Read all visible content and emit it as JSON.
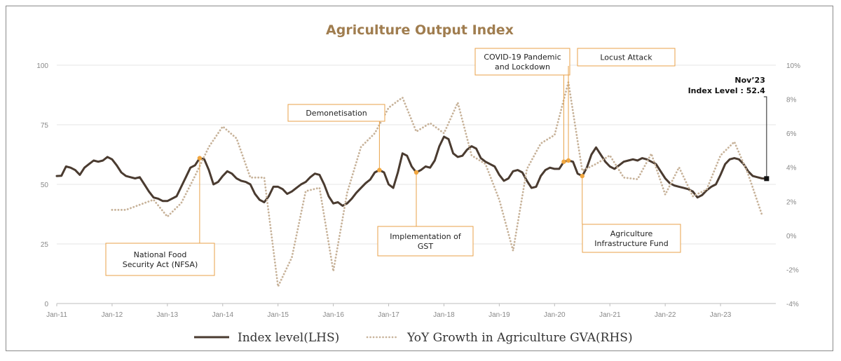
{
  "chart_data": {
    "type": "line",
    "title": "Agriculture Output Index",
    "x_tick_labels": [
      "Jan-11",
      "Jan-12",
      "Jan-13",
      "Jan-14",
      "Jan-15",
      "Jan-16",
      "Jan-17",
      "Jan-18",
      "Jan-19",
      "Jan-20",
      "Jan-21",
      "Jan-22",
      "Jan-23"
    ],
    "y_left_ticks": [
      "0",
      "25",
      "50",
      "75",
      "100"
    ],
    "y_right_ticks": [
      "-4%",
      "-2%",
      "0%",
      "2%",
      "4%",
      "6%",
      "8%",
      "10%"
    ],
    "y_left_range": [
      0,
      100
    ],
    "y_right_range": [
      -4,
      10
    ],
    "grid": true,
    "legend_position": "bottom",
    "series": [
      {
        "name": "Index level(LHS)",
        "axis": "left",
        "color": "#4a3b30",
        "style": "solid",
        "points": [
          [
            "2011-01",
            53.5
          ],
          [
            "2011-02",
            53.6
          ],
          [
            "2011-03",
            57.5
          ],
          [
            "2011-04",
            57.0
          ],
          [
            "2011-05",
            56.0
          ],
          [
            "2011-06",
            54.0
          ],
          [
            "2011-07",
            57.0
          ],
          [
            "2011-08",
            58.5
          ],
          [
            "2011-09",
            60.0
          ],
          [
            "2011-10",
            59.5
          ],
          [
            "2011-11",
            60.0
          ],
          [
            "2011-12",
            61.5
          ],
          [
            "2012-01",
            60.5
          ],
          [
            "2012-02",
            58.0
          ],
          [
            "2012-03",
            55.0
          ],
          [
            "2012-04",
            53.5
          ],
          [
            "2012-05",
            53.0
          ],
          [
            "2012-06",
            52.5
          ],
          [
            "2012-07",
            53.0
          ],
          [
            "2012-08",
            50.0
          ],
          [
            "2012-09",
            47.0
          ],
          [
            "2012-10",
            44.5
          ],
          [
            "2012-11",
            44.0
          ],
          [
            "2012-12",
            43.0
          ],
          [
            "2013-01",
            43.0
          ],
          [
            "2013-02",
            44.0
          ],
          [
            "2013-03",
            45.0
          ],
          [
            "2013-04",
            49.0
          ],
          [
            "2013-05",
            53.0
          ],
          [
            "2013-06",
            57.0
          ],
          [
            "2013-07",
            58.0
          ],
          [
            "2013-08",
            61.0
          ],
          [
            "2013-09",
            60.5
          ],
          [
            "2013-10",
            56.0
          ],
          [
            "2013-11",
            50.0
          ],
          [
            "2013-12",
            51.0
          ],
          [
            "2014-01",
            53.5
          ],
          [
            "2014-02",
            55.5
          ],
          [
            "2014-03",
            54.5
          ],
          [
            "2014-04",
            52.5
          ],
          [
            "2014-05",
            51.5
          ],
          [
            "2014-06",
            51.0
          ],
          [
            "2014-07",
            50.0
          ],
          [
            "2014-08",
            46.0
          ],
          [
            "2014-09",
            43.5
          ],
          [
            "2014-10",
            42.5
          ],
          [
            "2014-11",
            45.0
          ],
          [
            "2014-12",
            49.0
          ],
          [
            "2015-01",
            49.0
          ],
          [
            "2015-02",
            48.0
          ],
          [
            "2015-03",
            46.0
          ],
          [
            "2015-04",
            47.0
          ],
          [
            "2015-05",
            48.5
          ],
          [
            "2015-06",
            50.0
          ],
          [
            "2015-07",
            51.0
          ],
          [
            "2015-08",
            53.0
          ],
          [
            "2015-09",
            54.5
          ],
          [
            "2015-10",
            54.0
          ],
          [
            "2015-11",
            50.0
          ],
          [
            "2015-12",
            45.0
          ],
          [
            "2016-01",
            42.0
          ],
          [
            "2016-02",
            42.5
          ],
          [
            "2016-03",
            41.0
          ],
          [
            "2016-04",
            42.0
          ],
          [
            "2016-05",
            44.0
          ],
          [
            "2016-06",
            46.5
          ],
          [
            "2016-07",
            48.5
          ],
          [
            "2016-08",
            50.5
          ],
          [
            "2016-09",
            52.0
          ],
          [
            "2016-10",
            55.0
          ],
          [
            "2016-11",
            56.0
          ],
          [
            "2016-12",
            55.0
          ],
          [
            "2017-01",
            50.0
          ],
          [
            "2017-02",
            48.5
          ],
          [
            "2017-03",
            55.0
          ],
          [
            "2017-04",
            63.0
          ],
          [
            "2017-05",
            62.0
          ],
          [
            "2017-06",
            57.5
          ],
          [
            "2017-07",
            55.0
          ],
          [
            "2017-08",
            56.0
          ],
          [
            "2017-09",
            57.5
          ],
          [
            "2017-10",
            57.0
          ],
          [
            "2017-11",
            60.0
          ],
          [
            "2017-12",
            66.0
          ],
          [
            "2018-01",
            70.0
          ],
          [
            "2018-02",
            69.0
          ],
          [
            "2018-03",
            63.0
          ],
          [
            "2018-04",
            61.5
          ],
          [
            "2018-05",
            62.0
          ],
          [
            "2018-06",
            64.5
          ],
          [
            "2018-07",
            66.0
          ],
          [
            "2018-08",
            65.0
          ],
          [
            "2018-09",
            61.0
          ],
          [
            "2018-10",
            59.5
          ],
          [
            "2018-11",
            58.5
          ],
          [
            "2018-12",
            57.5
          ],
          [
            "2019-01",
            54.0
          ],
          [
            "2019-02",
            51.5
          ],
          [
            "2019-03",
            52.5
          ],
          [
            "2019-04",
            55.5
          ],
          [
            "2019-05",
            56.0
          ],
          [
            "2019-06",
            55.0
          ],
          [
            "2019-07",
            51.5
          ],
          [
            "2019-08",
            48.5
          ],
          [
            "2019-09",
            49.0
          ],
          [
            "2019-10",
            53.5
          ],
          [
            "2019-11",
            56.0
          ],
          [
            "2019-12",
            57.0
          ],
          [
            "2020-01",
            56.5
          ],
          [
            "2020-02",
            56.5
          ],
          [
            "2020-03",
            59.5
          ],
          [
            "2020-04",
            60.0
          ],
          [
            "2020-05",
            59.5
          ],
          [
            "2020-06",
            54.5
          ],
          [
            "2020-07",
            53.5
          ],
          [
            "2020-08",
            57.0
          ],
          [
            "2020-09",
            62.5
          ],
          [
            "2020-10",
            65.5
          ],
          [
            "2020-11",
            62.5
          ],
          [
            "2020-12",
            59.5
          ],
          [
            "2021-01",
            57.5
          ],
          [
            "2021-02",
            56.5
          ],
          [
            "2021-03",
            58.0
          ],
          [
            "2021-04",
            59.5
          ],
          [
            "2021-05",
            60.0
          ],
          [
            "2021-06",
            60.5
          ],
          [
            "2021-07",
            60.0
          ],
          [
            "2021-08",
            61.0
          ],
          [
            "2021-09",
            60.5
          ],
          [
            "2021-10",
            59.5
          ],
          [
            "2021-11",
            58.5
          ],
          [
            "2021-12",
            55.5
          ],
          [
            "2022-01",
            52.5
          ],
          [
            "2022-02",
            50.5
          ],
          [
            "2022-03",
            49.5
          ],
          [
            "2022-04",
            49.0
          ],
          [
            "2022-05",
            48.5
          ],
          [
            "2022-06",
            48.0
          ],
          [
            "2022-07",
            47.0
          ],
          [
            "2022-08",
            44.5
          ],
          [
            "2022-09",
            45.5
          ],
          [
            "2022-10",
            47.5
          ],
          [
            "2022-11",
            49.0
          ],
          [
            "2022-12",
            50.0
          ],
          [
            "2023-01",
            54.0
          ],
          [
            "2023-02",
            58.5
          ],
          [
            "2023-03",
            60.5
          ],
          [
            "2023-04",
            61.0
          ],
          [
            "2023-05",
            60.5
          ],
          [
            "2023-06",
            58.5
          ],
          [
            "2023-07",
            55.5
          ],
          [
            "2023-08",
            53.5
          ],
          [
            "2023-09",
            53.0
          ],
          [
            "2023-10",
            52.5
          ],
          [
            "2023-11",
            52.4
          ]
        ]
      },
      {
        "name": "YoY Growth in Agriculture GVA(RHS)",
        "axis": "right",
        "color": "#c7b299",
        "style": "dotted",
        "points": [
          [
            "2012-01",
            1.5
          ],
          [
            "2012-04",
            1.5
          ],
          [
            "2012-07",
            1.8
          ],
          [
            "2012-10",
            2.1
          ],
          [
            "2013-01",
            1.1
          ],
          [
            "2013-04",
            1.9
          ],
          [
            "2013-07",
            3.5
          ],
          [
            "2013-10",
            5.2
          ],
          [
            "2014-01",
            6.4
          ],
          [
            "2014-04",
            5.7
          ],
          [
            "2014-07",
            3.4
          ],
          [
            "2014-10",
            3.4
          ],
          [
            "2015-01",
            -3.0
          ],
          [
            "2015-04",
            -1.3
          ],
          [
            "2015-07",
            2.6
          ],
          [
            "2015-10",
            2.8
          ],
          [
            "2016-01",
            -2.1
          ],
          [
            "2016-04",
            2.5
          ],
          [
            "2016-07",
            5.2
          ],
          [
            "2016-10",
            6.0
          ],
          [
            "2017-01",
            7.5
          ],
          [
            "2017-04",
            8.1
          ],
          [
            "2017-07",
            6.1
          ],
          [
            "2017-10",
            6.6
          ],
          [
            "2018-01",
            6.0
          ],
          [
            "2018-04",
            7.8
          ],
          [
            "2018-07",
            4.7
          ],
          [
            "2018-10",
            4.2
          ],
          [
            "2019-01",
            2.1
          ],
          [
            "2019-04",
            -0.9
          ],
          [
            "2019-07",
            3.9
          ],
          [
            "2019-10",
            5.4
          ],
          [
            "2020-01",
            5.9
          ],
          [
            "2020-04",
            9.0
          ],
          [
            "2020-07",
            3.8
          ],
          [
            "2020-10",
            4.2
          ],
          [
            "2021-01",
            4.7
          ],
          [
            "2021-04",
            3.4
          ],
          [
            "2021-07",
            3.3
          ],
          [
            "2021-10",
            4.8
          ],
          [
            "2022-01",
            2.4
          ],
          [
            "2022-04",
            4.0
          ],
          [
            "2022-07",
            2.3
          ],
          [
            "2022-10",
            2.7
          ],
          [
            "2023-01",
            4.7
          ],
          [
            "2023-04",
            5.5
          ],
          [
            "2023-07",
            3.6
          ],
          [
            "2023-10",
            1.2
          ]
        ]
      }
    ],
    "annotations": [
      {
        "lines": [
          "National Food",
          "Security Act (NFSA)"
        ],
        "date": "2013-08"
      },
      {
        "lines": [
          "Demonetisation"
        ],
        "date": "2016-11"
      },
      {
        "lines": [
          "Implementation of",
          "GST"
        ],
        "date": "2017-07"
      },
      {
        "lines": [
          "COVID-19 Pandemic",
          "and Lockdown"
        ],
        "date": "2020-03"
      },
      {
        "lines": [
          "Locust Attack"
        ],
        "date": "2020-04"
      },
      {
        "lines": [
          "Agriculture",
          "Infrastructure Fund"
        ],
        "date": "2020-07"
      }
    ],
    "callout": {
      "lines": [
        "Nov’23",
        "Index Level : 52.4"
      ],
      "date": "2023-11"
    }
  }
}
